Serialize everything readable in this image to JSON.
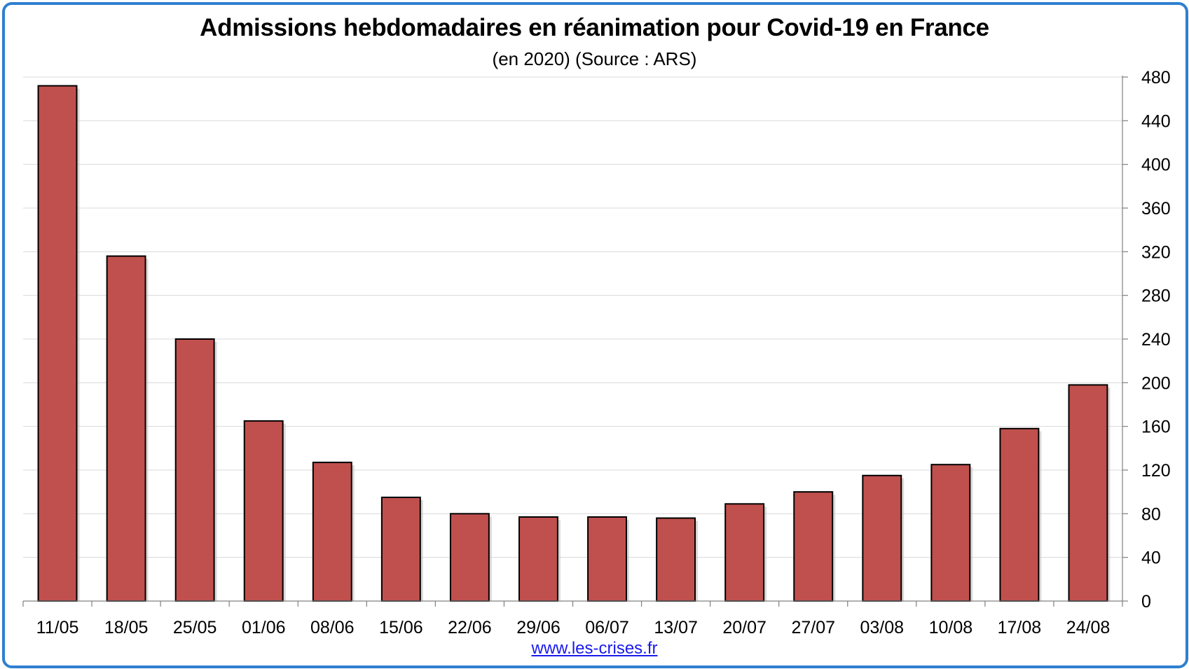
{
  "chart_data": {
    "type": "bar",
    "title": "Admissions hebdomadaires en réanimation pour Covid-19 en France",
    "subtitle": "(en 2020) (Source : ARS)",
    "categories": [
      "11/05",
      "18/05",
      "25/05",
      "01/06",
      "08/06",
      "15/06",
      "22/06",
      "29/06",
      "06/07",
      "13/07",
      "20/07",
      "27/07",
      "03/08",
      "10/08",
      "17/08",
      "24/08"
    ],
    "values": [
      472,
      316,
      240,
      165,
      127,
      95,
      80,
      77,
      77,
      76,
      89,
      100,
      115,
      125,
      158,
      198
    ],
    "ylim": [
      0,
      480
    ],
    "yticks": [
      "0",
      "40",
      "80",
      "120",
      "160",
      "200",
      "240",
      "280",
      "320",
      "360",
      "400",
      "440",
      "480"
    ],
    "y_axis_side": "right",
    "grid": true,
    "bar_color": "#c0504d",
    "bar_outline_color": "#000000",
    "frame_color": "#2f7fd0"
  },
  "credit": "www.les-crises.fr"
}
